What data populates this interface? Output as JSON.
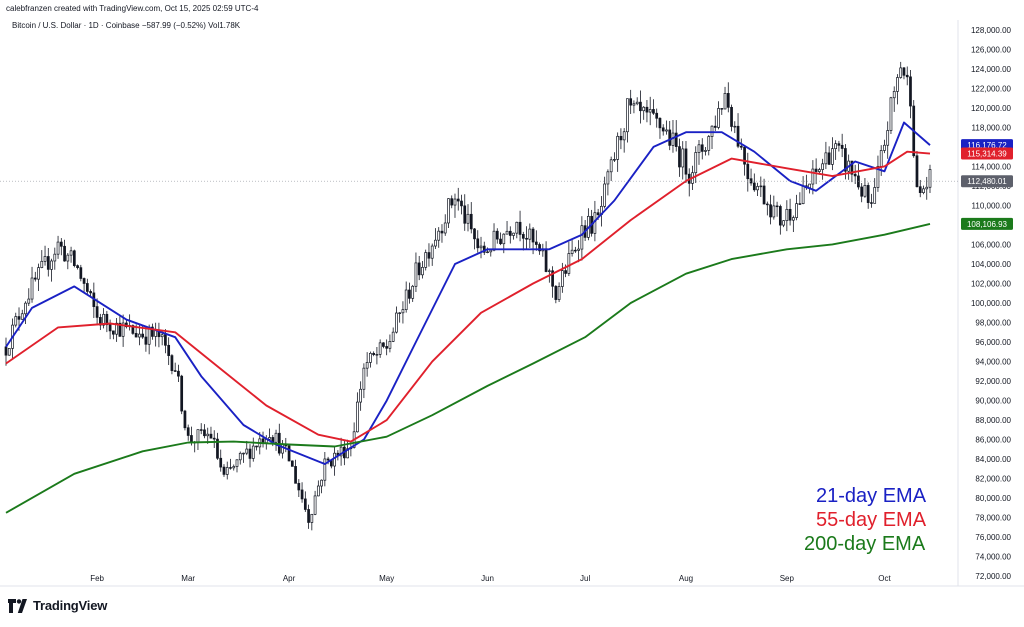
{
  "header": {
    "credit": "calebfranzen created with TradingView.com, Oct 15, 2025 02:59 UTC-4",
    "symbol_line": "Bitcoin / U.S. Dollar · 1D · Coinbase  −587.99 (−0.52%)  Vol1.78K"
  },
  "footer": {
    "brand": "TradingView",
    "logo_icon": "tradingview-logo-icon"
  },
  "legend": {
    "items": [
      {
        "label": "21-day EMA",
        "color": "#1a21c4"
      },
      {
        "label": "55-day EMA",
        "color": "#e0202c"
      },
      {
        "label": "200-day EMA",
        "color": "#1b7a1b"
      }
    ]
  },
  "chart_data": {
    "type": "candlestick",
    "title": "Bitcoin / U.S. Dollar",
    "interval": "1D",
    "exchange": "Coinbase",
    "change": "−587.99",
    "change_percent": "−0.52%",
    "volume": "1.78K",
    "x_axis": {
      "ticks": [
        "Feb",
        "Mar",
        "Apr",
        "May",
        "Jun",
        "Jul",
        "Aug",
        "Sep",
        "Oct"
      ],
      "range": [
        "2025-01-04",
        "2025-10-15"
      ]
    },
    "y_axis": {
      "ylim": [
        71000,
        129000
      ],
      "position": "right",
      "ticks": [
        "72,000.00",
        "74,000.00",
        "76,000.00",
        "78,000.00",
        "80,000.00",
        "82,000.00",
        "84,000.00",
        "86,000.00",
        "88,000.00",
        "90,000.00",
        "92,000.00",
        "94,000.00",
        "96,000.00",
        "98,000.00",
        "100,000.00",
        "102,000.00",
        "104,000.00",
        "106,000.00",
        "108,000.00",
        "110,000.00",
        "112,000.00",
        "114,000.00",
        "116,000.00",
        "118,000.00",
        "120,000.00",
        "122,000.00",
        "124,000.00",
        "126,000.00",
        "128,000.00"
      ]
    },
    "price_tags": [
      {
        "label": "116,176.72",
        "value": 116176.72,
        "color": "#1a21c4"
      },
      {
        "label": "115,314.39",
        "value": 115314.39,
        "color": "#e0202c"
      },
      {
        "label": "112,480.01",
        "value": 112480.01,
        "color": "#5d606b"
      },
      {
        "label": "108,106.93",
        "value": 108106.93,
        "color": "#1b7a1b"
      }
    ],
    "current_price": 112480.01,
    "grid": false,
    "legend_position": "bottom-right",
    "candle_color": "#131722",
    "candle_anchors": [
      [
        "2025-01-04",
        95500
      ],
      [
        "2025-01-10",
        100500
      ],
      [
        "2025-01-20",
        106000
      ],
      [
        "2025-01-26",
        103500
      ],
      [
        "2025-02-01",
        98500
      ],
      [
        "2025-02-10",
        97200
      ],
      [
        "2025-02-20",
        96500
      ],
      [
        "2025-02-25",
        93500
      ],
      [
        "2025-03-01",
        86000
      ],
      [
        "2025-03-08",
        86500
      ],
      [
        "2025-03-12",
        82000
      ],
      [
        "2025-03-20",
        85000
      ],
      [
        "2025-03-26",
        87000
      ],
      [
        "2025-04-01",
        84000
      ],
      [
        "2025-04-07",
        78000
      ],
      [
        "2025-04-12",
        83500
      ],
      [
        "2025-04-20",
        85500
      ],
      [
        "2025-04-24",
        93500
      ],
      [
        "2025-05-01",
        95500
      ],
      [
        "2025-05-10",
        103000
      ],
      [
        "2025-05-22",
        111000
      ],
      [
        "2025-05-30",
        105000
      ],
      [
        "2025-06-10",
        108500
      ],
      [
        "2025-06-18",
        104500
      ],
      [
        "2025-06-22",
        101000
      ],
      [
        "2025-06-30",
        107500
      ],
      [
        "2025-07-05",
        108500
      ],
      [
        "2025-07-10",
        115000
      ],
      [
        "2025-07-14",
        119800
      ],
      [
        "2025-07-25",
        118000
      ],
      [
        "2025-08-02",
        113500
      ],
      [
        "2025-08-08",
        117000
      ],
      [
        "2025-08-13",
        121500
      ],
      [
        "2025-08-20",
        113500
      ],
      [
        "2025-08-30",
        108500
      ],
      [
        "2025-09-05",
        110500
      ],
      [
        "2025-09-15",
        116000
      ],
      [
        "2025-09-22",
        113000
      ],
      [
        "2025-09-27",
        109500
      ],
      [
        "2025-10-03",
        120000
      ],
      [
        "2025-10-06",
        124500
      ],
      [
        "2025-10-09",
        121500
      ],
      [
        "2025-10-11",
        111000
      ],
      [
        "2025-10-15",
        112480
      ]
    ],
    "series": [
      {
        "name": "21-day EMA",
        "color": "#1a21c4",
        "points": [
          [
            "2025-01-04",
            95500
          ],
          [
            "2025-01-12",
            99500
          ],
          [
            "2025-01-25",
            101700
          ],
          [
            "2025-02-10",
            98300
          ],
          [
            "2025-02-25",
            96500
          ],
          [
            "2025-03-05",
            92500
          ],
          [
            "2025-03-18",
            87500
          ],
          [
            "2025-03-28",
            85500
          ],
          [
            "2025-04-12",
            83500
          ],
          [
            "2025-04-24",
            86000
          ],
          [
            "2025-05-01",
            90000
          ],
          [
            "2025-05-10",
            96000
          ],
          [
            "2025-05-22",
            104000
          ],
          [
            "2025-06-01",
            105500
          ],
          [
            "2025-06-20",
            105500
          ],
          [
            "2025-06-30",
            107000
          ],
          [
            "2025-07-10",
            110500
          ],
          [
            "2025-07-22",
            116000
          ],
          [
            "2025-08-01",
            117500
          ],
          [
            "2025-08-12",
            117500
          ],
          [
            "2025-08-22",
            115500
          ],
          [
            "2025-09-02",
            112500
          ],
          [
            "2025-09-10",
            111500
          ],
          [
            "2025-09-22",
            114500
          ],
          [
            "2025-10-01",
            113500
          ],
          [
            "2025-10-07",
            118500
          ],
          [
            "2025-10-15",
            116176.72
          ]
        ]
      },
      {
        "name": "55-day EMA",
        "color": "#e0202c",
        "points": [
          [
            "2025-01-04",
            93800
          ],
          [
            "2025-01-20",
            97500
          ],
          [
            "2025-02-05",
            97900
          ],
          [
            "2025-02-25",
            97000
          ],
          [
            "2025-03-10",
            93500
          ],
          [
            "2025-03-25",
            89500
          ],
          [
            "2025-04-10",
            86500
          ],
          [
            "2025-04-20",
            85800
          ],
          [
            "2025-05-01",
            88000
          ],
          [
            "2025-05-15",
            94000
          ],
          [
            "2025-05-30",
            99000
          ],
          [
            "2025-06-15",
            102000
          ],
          [
            "2025-06-30",
            104500
          ],
          [
            "2025-07-15",
            108500
          ],
          [
            "2025-08-01",
            112500
          ],
          [
            "2025-08-15",
            114800
          ],
          [
            "2025-09-01",
            113800
          ],
          [
            "2025-09-15",
            113000
          ],
          [
            "2025-10-01",
            114000
          ],
          [
            "2025-10-08",
            115500
          ],
          [
            "2025-10-15",
            115314.39
          ]
        ]
      },
      {
        "name": "200-day EMA",
        "color": "#1b7a1b",
        "points": [
          [
            "2025-01-04",
            78500
          ],
          [
            "2025-01-25",
            82500
          ],
          [
            "2025-02-15",
            84800
          ],
          [
            "2025-03-01",
            85700
          ],
          [
            "2025-03-15",
            85800
          ],
          [
            "2025-04-01",
            85500
          ],
          [
            "2025-04-15",
            85300
          ],
          [
            "2025-05-01",
            86300
          ],
          [
            "2025-05-15",
            88500
          ],
          [
            "2025-06-01",
            91500
          ],
          [
            "2025-06-15",
            93800
          ],
          [
            "2025-07-01",
            96500
          ],
          [
            "2025-07-15",
            100000
          ],
          [
            "2025-08-01",
            103000
          ],
          [
            "2025-08-15",
            104500
          ],
          [
            "2025-09-01",
            105500
          ],
          [
            "2025-09-15",
            106000
          ],
          [
            "2025-10-01",
            107000
          ],
          [
            "2025-10-15",
            108106.93
          ]
        ]
      }
    ]
  }
}
